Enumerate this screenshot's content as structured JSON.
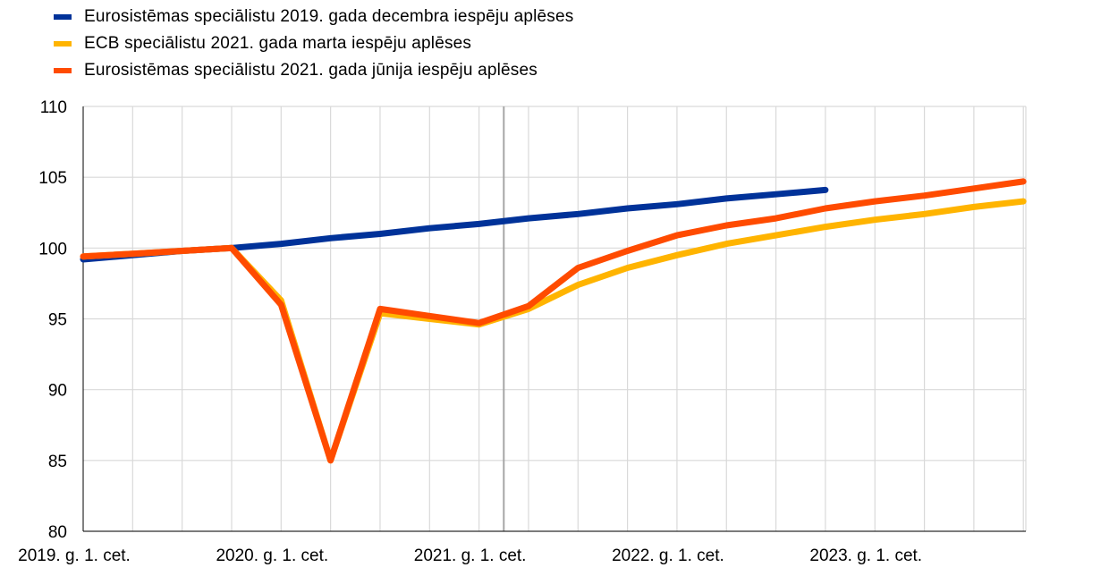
{
  "chart_data": {
    "type": "line",
    "ylim": [
      80,
      110
    ],
    "yticks": [
      80,
      85,
      90,
      95,
      100,
      105,
      110
    ],
    "x_quarters": [
      "2019Q1",
      "2019Q2",
      "2019Q3",
      "2019Q4",
      "2020Q1",
      "2020Q2",
      "2020Q3",
      "2020Q4",
      "2021Q1",
      "2021Q2",
      "2021Q3",
      "2021Q4",
      "2022Q1",
      "2022Q2",
      "2022Q3",
      "2022Q4",
      "2023Q1",
      "2023Q2",
      "2023Q3",
      "2023Q4"
    ],
    "xtick_labels": [
      {
        "index": 0,
        "label": "2019. g. 1. cet."
      },
      {
        "index": 4,
        "label": "2020. g. 1. cet."
      },
      {
        "index": 8,
        "label": "2021. g. 1. cet."
      },
      {
        "index": 12,
        "label": "2022. g. 1. cet."
      },
      {
        "index": 16,
        "label": "2023. g. 1. cet."
      }
    ],
    "reference_line_index": 8.5,
    "grid": "on",
    "legend_position": "top-left",
    "series": [
      {
        "name": "Eurosistēmas speciālistu 2019. gada decembra iespēju aplēses",
        "color": "#003299",
        "start_index": 0,
        "values": [
          99.2,
          99.5,
          99.8,
          100.0,
          100.3,
          100.7,
          101.0,
          101.4,
          101.7,
          102.1,
          102.4,
          102.8,
          103.1,
          103.5,
          103.8,
          104.1
        ]
      },
      {
        "name": "ECB speciālistu 2021. gada marta iespēju aplēses",
        "color": "#FFB400",
        "start_index": 0,
        "values": [
          99.4,
          99.6,
          99.8,
          100.0,
          96.3,
          85.0,
          95.4,
          95.0,
          94.6,
          95.7,
          97.4,
          98.6,
          99.5,
          100.3,
          100.9,
          101.5,
          102.0,
          102.4,
          102.9,
          103.3
        ]
      },
      {
        "name": "Eurosistēmas speciālistu 2021. gada jūnija iespēju aplēses",
        "color": "#FF4B00",
        "start_index": 0,
        "values": [
          99.4,
          99.6,
          99.8,
          100.0,
          96.0,
          85.0,
          95.7,
          95.2,
          94.7,
          95.9,
          98.6,
          99.8,
          100.9,
          101.6,
          102.1,
          102.8,
          103.3,
          103.7,
          104.2,
          104.7
        ]
      }
    ]
  }
}
